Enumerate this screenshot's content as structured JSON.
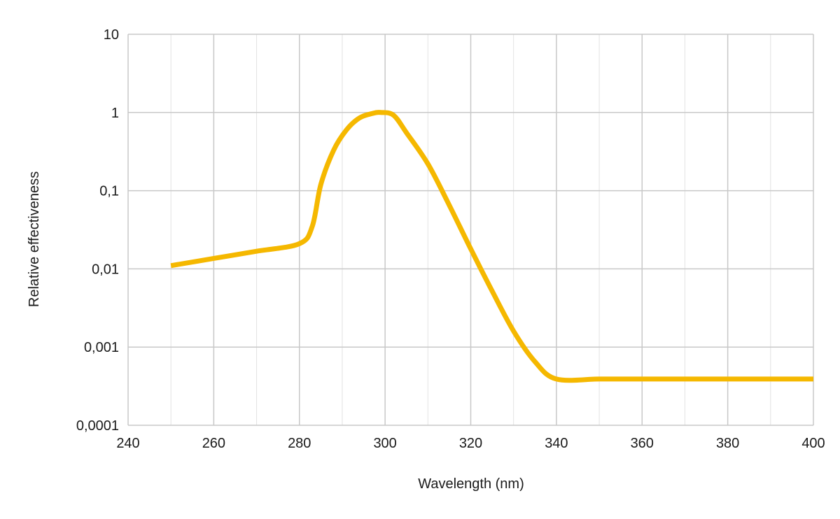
{
  "chart_data": {
    "type": "line",
    "title": "",
    "xlabel": "Wavelength (nm)",
    "ylabel": "Relative effectiveness",
    "xlim": [
      240,
      400
    ],
    "ylim": [
      0.0001,
      10
    ],
    "yscale": "log",
    "grid": true,
    "legend": "none",
    "x_ticks": [
      "240",
      "260",
      "280",
      "300",
      "320",
      "340",
      "360",
      "380",
      "400"
    ],
    "y_ticks": [
      "0,0001",
      "0,001",
      "0,01",
      "0,1",
      "1",
      "10"
    ],
    "series": [
      {
        "color": "#F5B800",
        "x": [
          250,
          260,
          270,
          280,
          283,
          285,
          288,
          291,
          294,
          297,
          299,
          302,
          305,
          310,
          315,
          320,
          325,
          330,
          335,
          340,
          350,
          360,
          370,
          380,
          390,
          400
        ],
        "y": [
          0.011,
          0.0136,
          0.0168,
          0.021,
          0.035,
          0.12,
          0.33,
          0.6,
          0.85,
          0.97,
          1.0,
          0.92,
          0.55,
          0.22,
          0.065,
          0.018,
          0.0052,
          0.0016,
          0.00065,
          0.00039,
          0.00039,
          0.00039,
          0.00039,
          0.00039,
          0.00039,
          0.00039
        ]
      }
    ]
  }
}
